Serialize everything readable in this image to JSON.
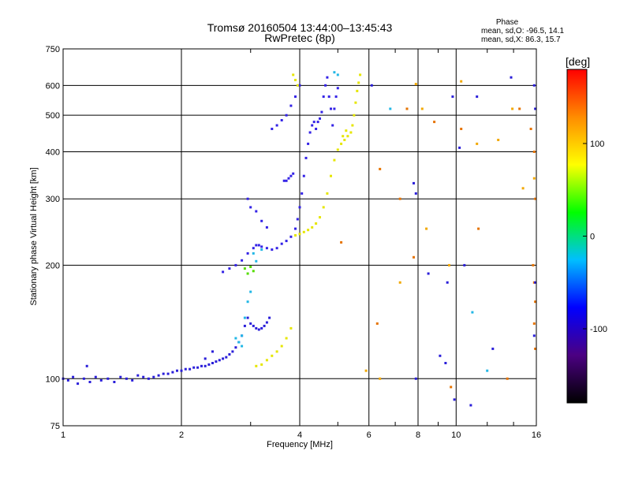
{
  "chart_data": {
    "type": "scatter",
    "title": "Tromsø 20160504 13:44:00–13:45:43",
    "subtitle": "RwPretec (8p)",
    "xlabel": "Frequency [MHz]",
    "ylabel": "Stationary phase Virtual Height [km]",
    "x_scale": "log",
    "y_scale": "log",
    "xlim": [
      1,
      16
    ],
    "ylim": [
      75,
      750
    ],
    "x_ticks": [
      1,
      2,
      4,
      6,
      8,
      10,
      16
    ],
    "x_tick_labels": [
      "1",
      "2",
      "4",
      "6",
      "8",
      "10",
      "16"
    ],
    "x_minor_ticks": [
      3,
      5,
      7,
      9,
      12,
      14
    ],
    "y_ticks": [
      75,
      100,
      200,
      300,
      400,
      500,
      600,
      750
    ],
    "y_tick_labels": [
      "75",
      "100",
      "200",
      "300",
      "400",
      "500",
      "600",
      "750"
    ],
    "grid": true,
    "stats": {
      "heading": "Phase",
      "o_line": "mean, sd,O: -96.5, 14.1",
      "x_line": "mean, sd,X:  86.3, 15.7"
    },
    "colorbar": {
      "label": "[deg]",
      "range": [
        -180,
        180
      ],
      "ticks": [
        100,
        0,
        -100
      ],
      "tick_labels": [
        "100",
        "0",
        "-100"
      ],
      "stops": [
        "#000000",
        "#4b0082",
        "#0000ff",
        "#00bfff",
        "#00ff00",
        "#ffff00",
        "#ff8c00",
        "#ff0000"
      ]
    },
    "series": [
      {
        "color": "#2a1ed9",
        "phase": -100,
        "points": [
          [
            1.0,
            100
          ],
          [
            1.03,
            99
          ],
          [
            1.06,
            101
          ],
          [
            1.09,
            97
          ],
          [
            1.13,
            100
          ],
          [
            1.17,
            98
          ],
          [
            1.21,
            101
          ],
          [
            1.25,
            99
          ],
          [
            1.3,
            100
          ],
          [
            1.35,
            98
          ],
          [
            1.4,
            101
          ],
          [
            1.45,
            100
          ],
          [
            1.5,
            99
          ],
          [
            1.55,
            102
          ],
          [
            1.6,
            101
          ],
          [
            1.65,
            100
          ],
          [
            1.7,
            101
          ],
          [
            1.75,
            102
          ],
          [
            1.8,
            103
          ],
          [
            1.85,
            103
          ],
          [
            1.9,
            104
          ],
          [
            1.95,
            105
          ],
          [
            2.0,
            105
          ],
          [
            2.05,
            106
          ],
          [
            2.1,
            106
          ],
          [
            2.15,
            107
          ],
          [
            2.2,
            107
          ],
          [
            2.25,
            108
          ],
          [
            2.3,
            108
          ],
          [
            2.35,
            109
          ],
          [
            2.4,
            110
          ],
          [
            2.45,
            111
          ],
          [
            2.5,
            112
          ],
          [
            2.55,
            113
          ],
          [
            2.6,
            114
          ],
          [
            2.65,
            116
          ],
          [
            2.7,
            118
          ],
          [
            2.75,
            121
          ],
          [
            2.8,
            125
          ],
          [
            2.85,
            130
          ],
          [
            2.9,
            138
          ],
          [
            2.95,
            145
          ],
          [
            3.0,
            140
          ],
          [
            3.05,
            138
          ],
          [
            3.1,
            136
          ],
          [
            3.15,
            135
          ],
          [
            3.2,
            136
          ],
          [
            3.25,
            138
          ],
          [
            3.3,
            141
          ],
          [
            3.35,
            145
          ],
          [
            1.15,
            108
          ],
          [
            2.3,
            113
          ],
          [
            2.4,
            118
          ]
        ]
      },
      {
        "color": "#3322e6",
        "phase": -96,
        "points": [
          [
            2.55,
            192
          ],
          [
            2.65,
            196
          ],
          [
            2.75,
            200
          ],
          [
            2.85,
            206
          ],
          [
            2.95,
            215
          ],
          [
            3.05,
            222
          ],
          [
            3.1,
            226
          ],
          [
            3.15,
            226
          ],
          [
            3.2,
            224
          ],
          [
            3.3,
            222
          ],
          [
            3.4,
            220
          ],
          [
            3.5,
            222
          ],
          [
            3.6,
            228
          ],
          [
            3.7,
            232
          ],
          [
            3.8,
            238
          ],
          [
            3.9,
            250
          ],
          [
            3.95,
            265
          ],
          [
            4.0,
            285
          ],
          [
            4.05,
            310
          ],
          [
            4.1,
            345
          ],
          [
            4.15,
            385
          ],
          [
            4.2,
            420
          ],
          [
            4.25,
            450
          ],
          [
            4.3,
            470
          ],
          [
            4.35,
            480
          ],
          [
            4.4,
            460
          ],
          [
            4.45,
            480
          ],
          [
            4.5,
            490
          ],
          [
            4.55,
            510
          ],
          [
            4.6,
            560
          ],
          [
            4.65,
            600
          ],
          [
            4.7,
            630
          ],
          [
            4.75,
            560
          ],
          [
            4.8,
            520
          ],
          [
            4.85,
            470
          ],
          [
            4.9,
            520
          ],
          [
            4.95,
            560
          ],
          [
            5.0,
            590
          ],
          [
            3.1,
            278
          ],
          [
            3.2,
            262
          ],
          [
            3.3,
            252
          ],
          [
            3.0,
            285
          ],
          [
            2.95,
            300
          ],
          [
            3.4,
            460
          ],
          [
            3.5,
            470
          ],
          [
            3.6,
            485
          ],
          [
            3.7,
            500
          ],
          [
            3.8,
            530
          ],
          [
            3.9,
            560
          ],
          [
            4.0,
            600
          ],
          [
            3.65,
            335
          ],
          [
            3.7,
            335
          ],
          [
            3.75,
            340
          ],
          [
            3.8,
            345
          ],
          [
            3.85,
            350
          ]
        ]
      },
      {
        "color": "#e6e600",
        "phase": 100,
        "points": [
          [
            3.1,
            108
          ],
          [
            3.2,
            109
          ],
          [
            3.3,
            112
          ],
          [
            3.4,
            115
          ],
          [
            3.5,
            118
          ],
          [
            3.6,
            122
          ],
          [
            3.7,
            128
          ],
          [
            3.8,
            136
          ],
          [
            3.9,
            240
          ],
          [
            4.0,
            242
          ],
          [
            4.1,
            245
          ],
          [
            4.2,
            248
          ],
          [
            4.3,
            252
          ],
          [
            4.4,
            258
          ],
          [
            4.5,
            268
          ],
          [
            4.6,
            285
          ],
          [
            4.7,
            310
          ],
          [
            4.8,
            345
          ],
          [
            4.9,
            380
          ],
          [
            5.0,
            405
          ],
          [
            5.1,
            420
          ],
          [
            5.2,
            430
          ],
          [
            5.3,
            440
          ],
          [
            5.4,
            450
          ],
          [
            5.45,
            470
          ],
          [
            5.5,
            500
          ],
          [
            5.55,
            540
          ],
          [
            5.6,
            580
          ],
          [
            5.65,
            610
          ],
          [
            5.7,
            640
          ],
          [
            5.15,
            440
          ],
          [
            5.25,
            455
          ],
          [
            3.9,
            620
          ],
          [
            3.95,
            600
          ],
          [
            3.85,
            640
          ]
        ]
      },
      {
        "color": "#22b7e6",
        "phase": 20,
        "points": [
          [
            2.75,
            128
          ],
          [
            2.8,
            125
          ],
          [
            2.85,
            130
          ],
          [
            2.9,
            145
          ],
          [
            2.95,
            160
          ],
          [
            3.0,
            170
          ],
          [
            2.85,
            122
          ],
          [
            3.05,
            215
          ],
          [
            3.1,
            205
          ],
          [
            3.2,
            220
          ],
          [
            4.9,
            650
          ],
          [
            5.0,
            640
          ],
          [
            6.8,
            520
          ],
          [
            12.0,
            105
          ],
          [
            11.0,
            150
          ]
        ]
      },
      {
        "color": "#e67300",
        "phase": 160,
        "points": [
          [
            6.4,
            360
          ],
          [
            7.2,
            300
          ],
          [
            7.5,
            520
          ],
          [
            8.8,
            480
          ],
          [
            10.3,
            460
          ],
          [
            11.4,
            250
          ],
          [
            14.5,
            520
          ],
          [
            15.5,
            460
          ],
          [
            15.8,
            400
          ],
          [
            15.9,
            300
          ],
          [
            15.7,
            200
          ],
          [
            15.8,
            180
          ],
          [
            15.9,
            160
          ],
          [
            15.8,
            140
          ],
          [
            15.9,
            120
          ],
          [
            9.7,
            95
          ],
          [
            13.5,
            100
          ],
          [
            7.8,
            210
          ],
          [
            6.3,
            140
          ],
          [
            5.1,
            230
          ]
        ]
      },
      {
        "color": "#2a1ed9",
        "phase": -100,
        "points": [
          [
            6.1,
            600
          ],
          [
            7.8,
            330
          ],
          [
            7.9,
            310
          ],
          [
            8.5,
            190
          ],
          [
            9.1,
            115
          ],
          [
            9.5,
            180
          ],
          [
            10.2,
            410
          ],
          [
            10.5,
            200
          ],
          [
            11.3,
            560
          ],
          [
            12.4,
            120
          ],
          [
            13.8,
            630
          ],
          [
            15.8,
            600
          ],
          [
            15.9,
            520
          ],
          [
            15.9,
            180
          ],
          [
            15.8,
            130
          ],
          [
            7.9,
            100
          ],
          [
            9.4,
            110
          ],
          [
            10.9,
            85
          ],
          [
            9.9,
            88
          ],
          [
            9.8,
            560
          ]
        ]
      },
      {
        "color": "#f2a800",
        "phase": 120,
        "points": [
          [
            7.9,
            605
          ],
          [
            8.2,
            520
          ],
          [
            9.6,
            200
          ],
          [
            10.3,
            615
          ],
          [
            11.3,
            420
          ],
          [
            12.8,
            430
          ],
          [
            13.9,
            520
          ],
          [
            15.8,
            340
          ],
          [
            7.2,
            180
          ],
          [
            8.4,
            250
          ],
          [
            6.4,
            100
          ],
          [
            5.9,
            105
          ],
          [
            14.8,
            320
          ]
        ]
      },
      {
        "color": "#55dd00",
        "phase": 60,
        "points": [
          [
            3.05,
            193
          ],
          [
            2.95,
            190
          ],
          [
            3.0,
            198
          ],
          [
            2.9,
            196
          ]
        ]
      }
    ]
  }
}
